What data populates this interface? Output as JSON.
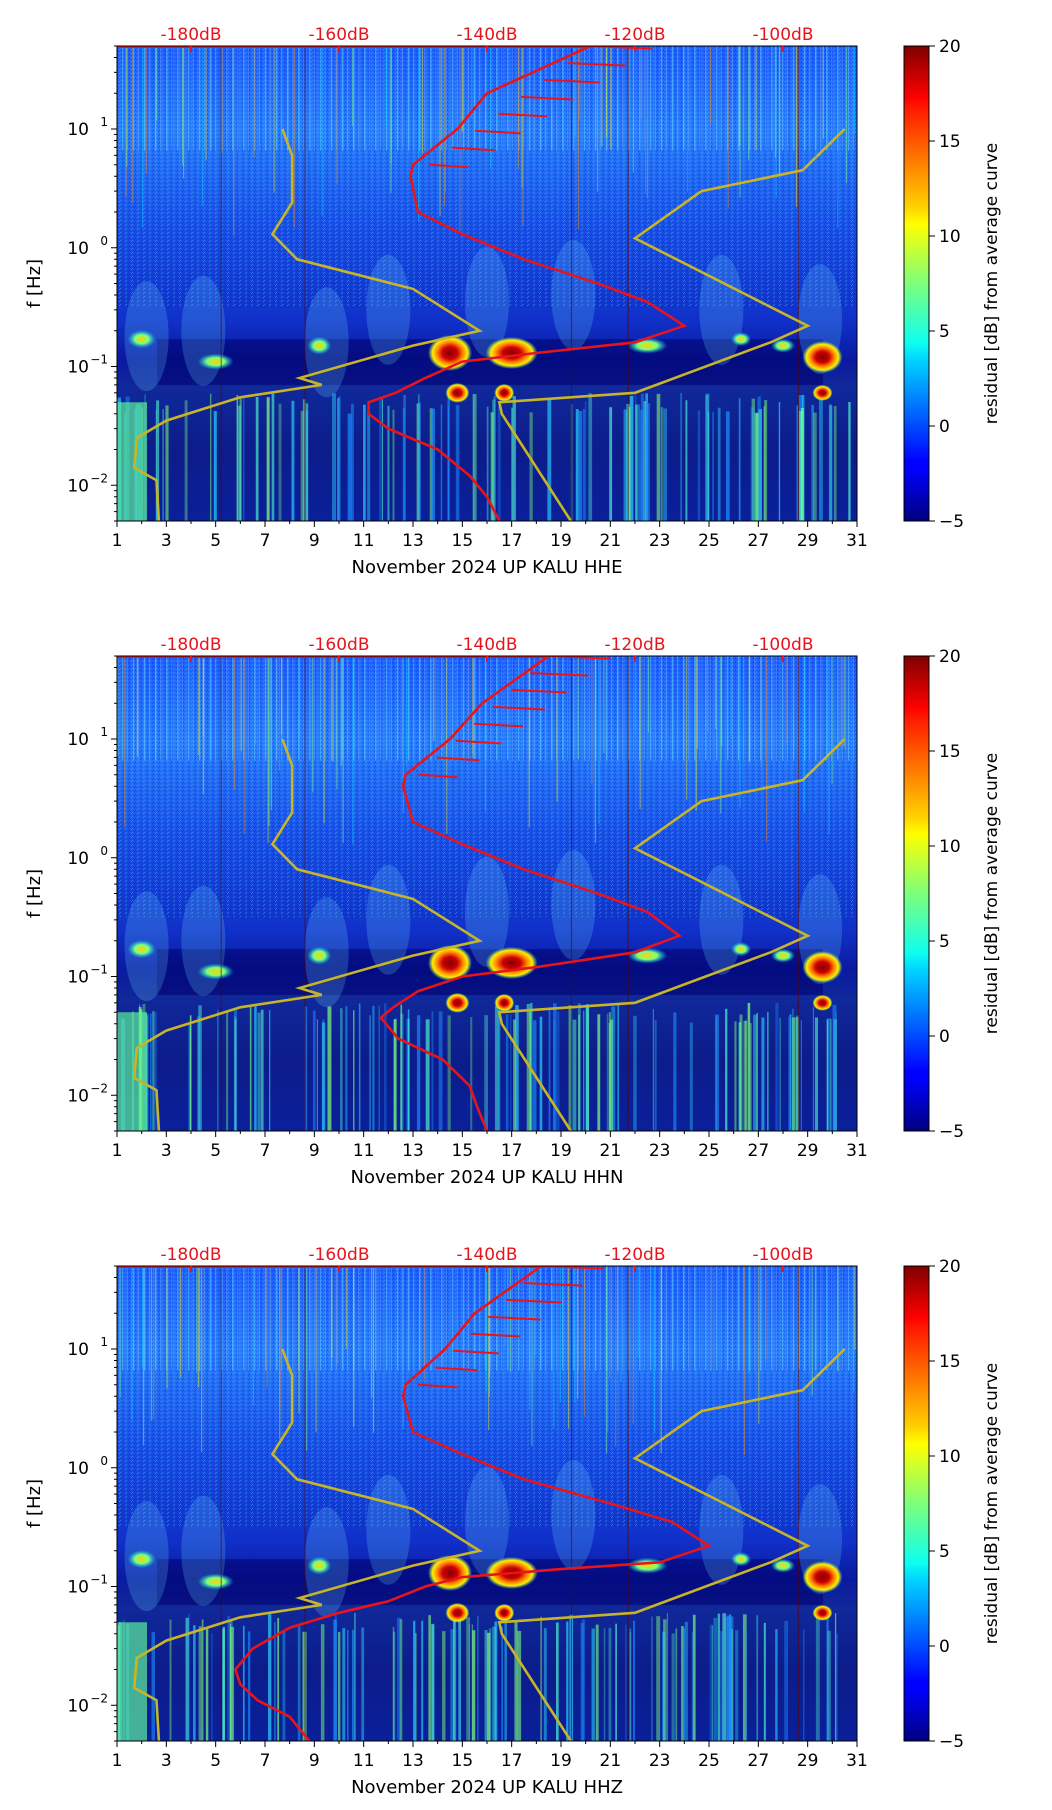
{
  "figure": {
    "colorbar_title": "residual [dB] from average curve"
  },
  "chart_data": [
    {
      "type": "heatmap",
      "subtitle": "HHE",
      "xlabel": "November 2024 UP KALU  HHE",
      "ylabel": "f [Hz]",
      "x_ticks": [
        "1",
        "3",
        "5",
        "7",
        "9",
        "11",
        "13",
        "15",
        "17",
        "19",
        "21",
        "23",
        "25",
        "27",
        "29",
        "31"
      ],
      "y_ticks": [
        "10^1",
        "10^0",
        "10^-1",
        "10^-2"
      ],
      "top_ticks": [
        "-180dB",
        "-160dB",
        "-140dB",
        "-120dB",
        "-100dB"
      ],
      "xlim": [
        1,
        31
      ],
      "ylim": [
        0.005,
        50
      ],
      "colorbar": {
        "label": "residual [dB] from average curve",
        "ticks": [
          "20",
          "15",
          "10",
          "5",
          "0",
          "−5"
        ],
        "range": [
          -5,
          20
        ]
      },
      "series": [
        {
          "name": "average PSD curve",
          "color": "#e8141c",
          "points": [
            [
              20.2,
              50
            ],
            [
              16,
              20
            ],
            [
              14.8,
              10
            ],
            [
              13,
              5
            ],
            [
              12.9,
              4
            ],
            [
              13.2,
              2
            ],
            [
              15,
              1.3
            ],
            [
              17.5,
              0.8
            ],
            [
              20.5,
              0.5
            ],
            [
              22.5,
              0.35
            ],
            [
              24,
              0.22
            ],
            [
              22,
              0.16
            ],
            [
              18,
              0.13
            ],
            [
              15,
              0.11
            ],
            [
              13.5,
              0.08
            ],
            [
              12.3,
              0.06
            ],
            [
              11.2,
              0.05
            ],
            [
              11.2,
              0.04
            ],
            [
              12,
              0.03
            ],
            [
              14,
              0.02
            ],
            [
              15.3,
              0.012
            ],
            [
              16,
              0.008
            ],
            [
              16.5,
              0.005
            ]
          ]
        },
        {
          "name": "noise model (low)",
          "color": "#c8b428",
          "points": [
            [
              7.7,
              10
            ],
            [
              8.1,
              6
            ],
            [
              8.1,
              2.4
            ],
            [
              7.3,
              1.3
            ],
            [
              8.3,
              0.8
            ],
            [
              13,
              0.45
            ],
            [
              15.7,
              0.2
            ],
            [
              13,
              0.15
            ],
            [
              8.4,
              0.08
            ],
            [
              9.3,
              0.07
            ],
            [
              6,
              0.055
            ],
            [
              3,
              0.035
            ],
            [
              1.8,
              0.025
            ],
            [
              1.7,
              0.014
            ],
            [
              2.6,
              0.011
            ],
            [
              2.7,
              0.005
            ]
          ]
        },
        {
          "name": "noise model (high)",
          "color": "#c8b428",
          "points": [
            [
              30.5,
              10
            ],
            [
              28.8,
              4.5
            ],
            [
              24.7,
              3
            ],
            [
              22,
              1.2
            ],
            [
              29,
              0.22
            ],
            [
              27.5,
              0.16
            ],
            [
              22,
              0.06
            ],
            [
              16.5,
              0.05
            ],
            [
              16.6,
              0.04
            ],
            [
              19.4,
              0.005
            ]
          ]
        }
      ]
    },
    {
      "type": "heatmap",
      "subtitle": "HHN",
      "xlabel": "November 2024 UP KALU  HHN",
      "ylabel": "f [Hz]",
      "x_ticks": [
        "1",
        "3",
        "5",
        "7",
        "9",
        "11",
        "13",
        "15",
        "17",
        "19",
        "21",
        "23",
        "25",
        "27",
        "29",
        "31"
      ],
      "y_ticks": [
        "10^1",
        "10^0",
        "10^-1",
        "10^-2"
      ],
      "top_ticks": [
        "-180dB",
        "-160dB",
        "-140dB",
        "-120dB",
        "-100dB"
      ],
      "xlim": [
        1,
        31
      ],
      "ylim": [
        0.005,
        50
      ],
      "colorbar": {
        "label": "residual [dB] from average curve",
        "ticks": [
          "20",
          "15",
          "10",
          "5",
          "0",
          "−5"
        ],
        "range": [
          -5,
          20
        ]
      },
      "series": [
        {
          "name": "average PSD curve",
          "color": "#e8141c",
          "points": [
            [
              18.5,
              50
            ],
            [
              15.8,
              20
            ],
            [
              14.5,
              10
            ],
            [
              12.7,
              5
            ],
            [
              12.6,
              4
            ],
            [
              13,
              2
            ],
            [
              15,
              1.3
            ],
            [
              17.5,
              0.8
            ],
            [
              20.5,
              0.5
            ],
            [
              22.5,
              0.35
            ],
            [
              23.8,
              0.22
            ],
            [
              22,
              0.16
            ],
            [
              18,
              0.12
            ],
            [
              15,
              0.1
            ],
            [
              13.2,
              0.075
            ],
            [
              12.2,
              0.055
            ],
            [
              11.7,
              0.045
            ],
            [
              12.4,
              0.03
            ],
            [
              14.2,
              0.02
            ],
            [
              15.3,
              0.012
            ],
            [
              15.6,
              0.008
            ],
            [
              16,
              0.005
            ]
          ]
        },
        {
          "name": "noise model (low)",
          "color": "#c8b428",
          "points": [
            [
              7.7,
              10
            ],
            [
              8.1,
              6
            ],
            [
              8.1,
              2.4
            ],
            [
              7.3,
              1.3
            ],
            [
              8.3,
              0.8
            ],
            [
              13,
              0.45
            ],
            [
              15.7,
              0.2
            ],
            [
              13,
              0.15
            ],
            [
              8.4,
              0.08
            ],
            [
              9.3,
              0.07
            ],
            [
              6,
              0.055
            ],
            [
              3,
              0.035
            ],
            [
              1.8,
              0.025
            ],
            [
              1.7,
              0.014
            ],
            [
              2.6,
              0.011
            ],
            [
              2.7,
              0.005
            ]
          ]
        },
        {
          "name": "noise model (high)",
          "color": "#c8b428",
          "points": [
            [
              30.5,
              10
            ],
            [
              28.8,
              4.5
            ],
            [
              24.7,
              3
            ],
            [
              22,
              1.2
            ],
            [
              29,
              0.22
            ],
            [
              27.5,
              0.16
            ],
            [
              22,
              0.06
            ],
            [
              16.5,
              0.05
            ],
            [
              16.6,
              0.04
            ],
            [
              19.4,
              0.005
            ]
          ]
        }
      ]
    },
    {
      "type": "heatmap",
      "subtitle": "HHZ",
      "xlabel": "November 2024 UP KALU  HHZ",
      "ylabel": "f [Hz]",
      "x_ticks": [
        "1",
        "3",
        "5",
        "7",
        "9",
        "11",
        "13",
        "15",
        "17",
        "19",
        "21",
        "23",
        "25",
        "27",
        "29",
        "31"
      ],
      "y_ticks": [
        "10^1",
        "10^0",
        "10^-1",
        "10^-2"
      ],
      "top_ticks": [
        "-180dB",
        "-160dB",
        "-140dB",
        "-120dB",
        "-100dB"
      ],
      "xlim": [
        1,
        31
      ],
      "ylim": [
        0.005,
        50
      ],
      "colorbar": {
        "label": "residual [dB] from average curve",
        "ticks": [
          "20",
          "15",
          "10",
          "5",
          "0",
          "−5"
        ],
        "range": [
          -5,
          20
        ]
      },
      "series": [
        {
          "name": "average PSD curve",
          "color": "#e8141c",
          "points": [
            [
              18.2,
              50
            ],
            [
              15.5,
              20
            ],
            [
              14.3,
              10
            ],
            [
              12.7,
              5
            ],
            [
              12.6,
              4
            ],
            [
              13,
              2
            ],
            [
              15,
              1.3
            ],
            [
              17.5,
              0.8
            ],
            [
              21,
              0.5
            ],
            [
              23.5,
              0.35
            ],
            [
              25,
              0.22
            ],
            [
              23,
              0.16
            ],
            [
              19,
              0.14
            ],
            [
              15,
              0.12
            ],
            [
              13.5,
              0.1
            ],
            [
              12,
              0.075
            ],
            [
              10,
              0.06
            ],
            [
              8,
              0.045
            ],
            [
              6.5,
              0.03
            ],
            [
              5.8,
              0.02
            ],
            [
              6,
              0.015
            ],
            [
              6.7,
              0.011
            ],
            [
              8,
              0.008
            ],
            [
              8.8,
              0.005
            ]
          ]
        },
        {
          "name": "noise model (low)",
          "color": "#c8b428",
          "points": [
            [
              7.7,
              10
            ],
            [
              8.1,
              6
            ],
            [
              8.1,
              2.4
            ],
            [
              7.3,
              1.3
            ],
            [
              8.3,
              0.8
            ],
            [
              13,
              0.45
            ],
            [
              15.7,
              0.2
            ],
            [
              13,
              0.15
            ],
            [
              8.4,
              0.08
            ],
            [
              9.3,
              0.07
            ],
            [
              6,
              0.055
            ],
            [
              3,
              0.035
            ],
            [
              1.8,
              0.025
            ],
            [
              1.7,
              0.014
            ],
            [
              2.6,
              0.011
            ],
            [
              2.7,
              0.005
            ]
          ]
        },
        {
          "name": "noise model (high)",
          "color": "#c8b428",
          "points": [
            [
              30.5,
              10
            ],
            [
              28.8,
              4.5
            ],
            [
              24.7,
              3
            ],
            [
              22,
              1.2
            ],
            [
              29,
              0.22
            ],
            [
              27.5,
              0.16
            ],
            [
              22,
              0.06
            ],
            [
              16.5,
              0.05
            ],
            [
              16.6,
              0.04
            ],
            [
              19.4,
              0.005
            ]
          ]
        }
      ]
    }
  ]
}
